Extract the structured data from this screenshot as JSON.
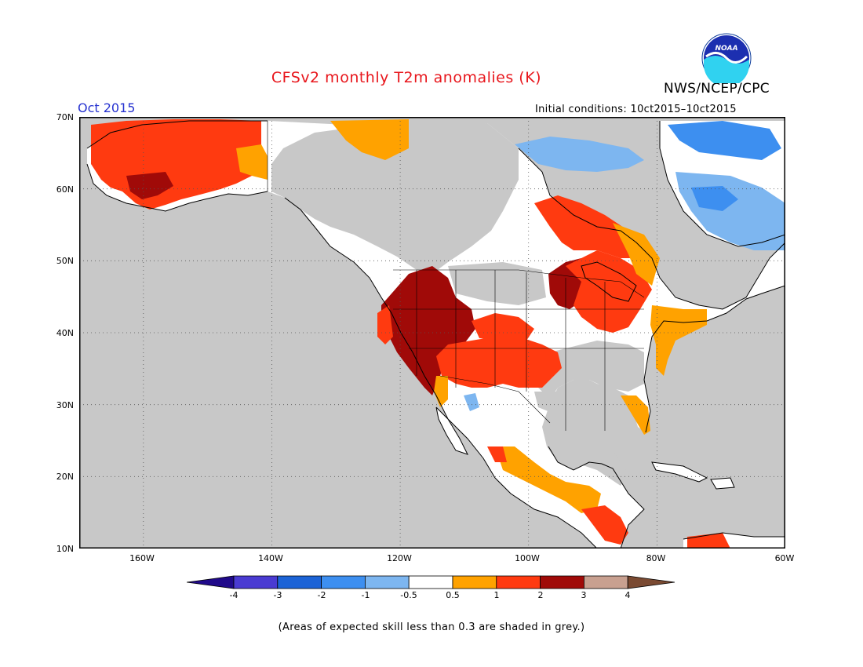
{
  "title": "CFSv2 monthly T2m anomalies (K)",
  "organization": "NWS/NCEP/CPC",
  "logo_text": "NOAA",
  "valid_month": "Oct 2015",
  "initial_conditions": "Initial conditions: 10ct2015–10ct2015",
  "map": {
    "lon_range": [
      -170,
      -60
    ],
    "lat_range": [
      10,
      70
    ],
    "lat_labels": [
      "70N",
      "60N",
      "50N",
      "40N",
      "30N",
      "20N",
      "10N"
    ],
    "lon_labels": [
      "160W",
      "140W",
      "120W",
      "100W",
      "80W",
      "60W"
    ],
    "grid": "dotted",
    "ocean_color": "#c8c8c8",
    "low_skill_color": "#c8c8c8"
  },
  "colorbar": {
    "ticks": [
      "-4",
      "-3",
      "-2",
      "-1",
      "-0.5",
      "0.5",
      "1",
      "2",
      "3",
      "4"
    ],
    "colors": [
      "#200a8a",
      "#4a3bd2",
      "#1c63d6",
      "#3d8ff0",
      "#7db6f0",
      "#ffffff",
      "#ffa200",
      "#ff3a10",
      "#a00a08",
      "#c8a090",
      "#7a4a32"
    ]
  },
  "footnote": "(Areas of expected skill less than 0.3 are shaded in grey.)",
  "regions": [
    {
      "name": "Alaska interior",
      "category": "1 to 2",
      "color": "#ff3a10"
    },
    {
      "name": "Southwest Alaska",
      "category": "2 to 3",
      "color": "#a00a08"
    },
    {
      "name": "Intermountain West",
      "category": "2 to 3",
      "color": "#a00a08"
    },
    {
      "name": "Southern Plains",
      "category": "1 to 2",
      "color": "#ff3a10"
    },
    {
      "name": "Upper Midwest",
      "category": "2 to 3",
      "color": "#a00a08"
    },
    {
      "name": "Great Lakes",
      "category": "1 to 2",
      "color": "#ff3a10"
    },
    {
      "name": "Ontario",
      "category": "1 to 2",
      "color": "#ff3a10"
    },
    {
      "name": "Hudson Bay",
      "category": "-1 to -0.5",
      "color": "#7db6f0"
    },
    {
      "name": "Baffin",
      "category": "-2 to -1",
      "color": "#3d8ff0"
    },
    {
      "name": "Labrador",
      "category": "-1 to -0.5",
      "color": "#7db6f0"
    },
    {
      "name": "Northeast US",
      "category": "0.5 to 1",
      "color": "#ffa200"
    },
    {
      "name": "Florida",
      "category": "0.5 to 1",
      "color": "#ffa200"
    },
    {
      "name": "Mexico",
      "category": "0.5 to 1",
      "color": "#ffa200"
    },
    {
      "name": "Central America",
      "category": "1 to 2",
      "color": "#ff3a10"
    }
  ]
}
